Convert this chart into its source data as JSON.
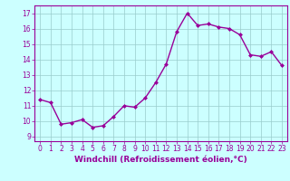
{
  "x": [
    0,
    1,
    2,
    3,
    4,
    5,
    6,
    7,
    8,
    9,
    10,
    11,
    12,
    13,
    14,
    15,
    16,
    17,
    18,
    19,
    20,
    21,
    22,
    23
  ],
  "y": [
    11.4,
    11.2,
    9.8,
    9.9,
    10.1,
    9.6,
    9.7,
    10.3,
    11.0,
    10.9,
    11.5,
    12.5,
    13.7,
    15.8,
    17.0,
    16.2,
    16.3,
    16.1,
    16.0,
    15.6,
    14.3,
    14.2,
    14.5,
    13.6
  ],
  "line_color": "#990099",
  "marker": "D",
  "marker_size": 2.0,
  "bg_color": "#ccffff",
  "grid_color": "#99cccc",
  "xlabel": "Windchill (Refroidissement éolien,°C)",
  "xlim": [
    -0.5,
    23.5
  ],
  "ylim": [
    8.7,
    17.5
  ],
  "yticks": [
    9,
    10,
    11,
    12,
    13,
    14,
    15,
    16,
    17
  ],
  "xticks": [
    0,
    1,
    2,
    3,
    4,
    5,
    6,
    7,
    8,
    9,
    10,
    11,
    12,
    13,
    14,
    15,
    16,
    17,
    18,
    19,
    20,
    21,
    22,
    23
  ],
  "xlabel_fontsize": 6.5,
  "tick_fontsize": 5.5,
  "tick_color": "#990099",
  "label_color": "#990099",
  "spine_color": "#990099",
  "line_width": 1.0
}
